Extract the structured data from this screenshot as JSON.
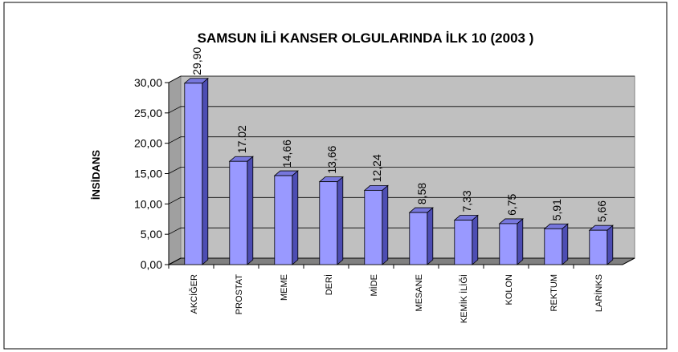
{
  "chart_data": {
    "type": "bar3d",
    "title": "SAMSUN İLİ KANSER OLGULARINDA İLK 10 (2003 )",
    "y_label": "İNSİDANS",
    "categories": [
      "AKCİĞER",
      "PROSTAT",
      "MEME",
      "DERİ",
      "MİDE",
      "MESANE",
      "KEMİK İLİĞİ",
      "KOLON",
      "REKTUM",
      "LARİNKS"
    ],
    "values": [
      29.9,
      17.02,
      14.66,
      13.66,
      12.24,
      8.58,
      7.33,
      6.75,
      5.91,
      5.66
    ],
    "value_labels": [
      "29,90",
      "17.02",
      "14,66",
      "13,66",
      "12,24",
      "8,58",
      "7,33",
      "6,75",
      "5,91",
      "5,66"
    ],
    "color": "#9999ff",
    "ylim": [
      0,
      30
    ],
    "yticks": [
      {
        "value": 0,
        "label": "0,00"
      },
      {
        "value": 5,
        "label": "5,00"
      },
      {
        "value": 10,
        "label": "10,00"
      },
      {
        "value": 15,
        "label": "15,00"
      },
      {
        "value": 20,
        "label": "20,00"
      },
      {
        "value": 25,
        "label": "25,00"
      },
      {
        "value": 30,
        "label": "30,00"
      }
    ],
    "grid": true
  }
}
